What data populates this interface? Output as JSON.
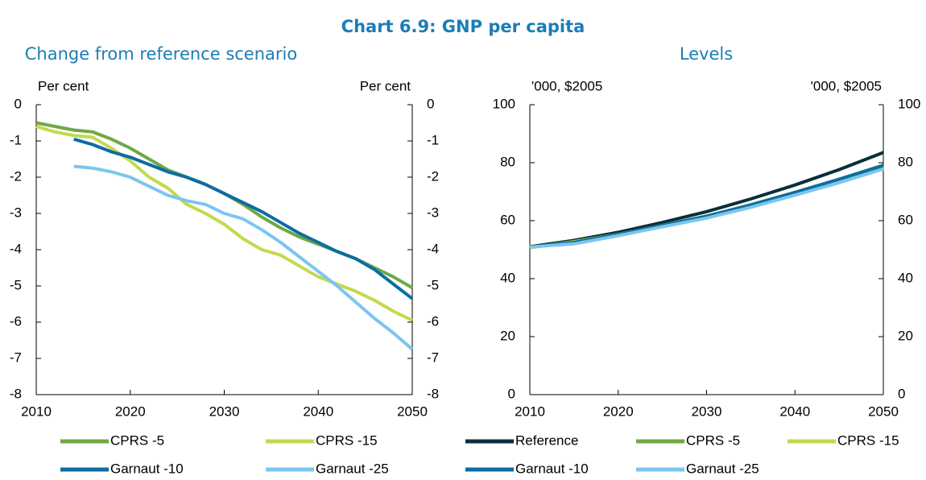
{
  "title": "Chart 6.9: GNP per capita",
  "chart_data": [
    {
      "type": "line",
      "title": "Change from reference scenario",
      "ylabel": "Per cent",
      "y2label": "Per cent",
      "x": [
        2010,
        2012,
        2014,
        2016,
        2018,
        2020,
        2022,
        2024,
        2026,
        2028,
        2030,
        2032,
        2034,
        2036,
        2038,
        2040,
        2042,
        2044,
        2046,
        2048,
        2050
      ],
      "xlim": [
        2010,
        2050
      ],
      "xticks": [
        2010,
        2020,
        2030,
        2040,
        2050
      ],
      "ylim": [
        -8,
        0
      ],
      "yticks": [
        -8,
        -7,
        -6,
        -5,
        -4,
        -3,
        -2,
        -1,
        0
      ],
      "y2lim": [
        -8,
        0
      ],
      "y2ticks": [
        -8,
        -7,
        -6,
        -5,
        -4,
        -3,
        -2,
        -1,
        0
      ],
      "series": [
        {
          "name": "CPRS -5",
          "color": "#6fa843",
          "values": [
            -0.5,
            -0.6,
            -0.7,
            -0.75,
            -0.95,
            -1.2,
            -1.5,
            -1.8,
            -2.0,
            -2.2,
            -2.45,
            -2.75,
            -3.1,
            -3.4,
            -3.65,
            -3.85,
            -4.05,
            -4.25,
            -4.5,
            -4.75,
            -5.05
          ]
        },
        {
          "name": "CPRS -15",
          "color": "#c3d94e",
          "values": [
            -0.6,
            -0.75,
            -0.85,
            -0.9,
            -1.2,
            -1.55,
            -2.0,
            -2.3,
            -2.75,
            -3.0,
            -3.3,
            -3.7,
            -4.0,
            -4.15,
            -4.45,
            -4.75,
            -4.95,
            -5.15,
            -5.4,
            -5.7,
            -5.95
          ]
        },
        {
          "name": "Garnaut -10",
          "color": "#0c6ca3",
          "values": [
            null,
            null,
            -0.95,
            -1.1,
            -1.3,
            -1.45,
            -1.65,
            -1.85,
            -2.0,
            -2.2,
            -2.45,
            -2.7,
            -2.95,
            -3.25,
            -3.55,
            -3.8,
            -4.05,
            -4.25,
            -4.55,
            -4.95,
            -5.35
          ]
        },
        {
          "name": "Garnaut -25",
          "color": "#7cc6ee",
          "values": [
            null,
            null,
            -1.7,
            -1.75,
            -1.85,
            -2.0,
            -2.25,
            -2.5,
            -2.65,
            -2.75,
            -3.0,
            -3.15,
            -3.45,
            -3.8,
            -4.2,
            -4.6,
            -5.0,
            -5.45,
            -5.9,
            -6.3,
            -6.75
          ]
        }
      ]
    },
    {
      "type": "line",
      "title": "Levels",
      "ylabel": "'000, $2005",
      "y2label": "'000, $2005",
      "x": [
        2010,
        2015,
        2020,
        2025,
        2030,
        2035,
        2040,
        2045,
        2050
      ],
      "xlim": [
        2010,
        2050
      ],
      "xticks": [
        2010,
        2020,
        2030,
        2040,
        2050
      ],
      "ylim": [
        0,
        100
      ],
      "yticks": [
        0,
        20,
        40,
        60,
        80,
        100
      ],
      "y2lim": [
        0,
        100
      ],
      "y2ticks": [
        0,
        20,
        40,
        60,
        80,
        100
      ],
      "series": [
        {
          "name": "Reference",
          "color": "#0a2f3c",
          "values": [
            51,
            53.2,
            56,
            59.4,
            63.1,
            67.5,
            72.3,
            77.6,
            83.5
          ]
        },
        {
          "name": "CPRS -5",
          "color": "#6fa843",
          "values": [
            50.7,
            52.8,
            55.3,
            58.4,
            61.6,
            65.5,
            69.8,
            74.3,
            79.2
          ]
        },
        {
          "name": "CPRS -15",
          "color": "#c3d94e",
          "values": [
            50.7,
            52.7,
            55.0,
            58.0,
            61.1,
            65.0,
            69.2,
            73.6,
            78.5
          ]
        },
        {
          "name": "Garnaut -10",
          "color": "#0c6ca3",
          "values": [
            50.9,
            52.5,
            55.2,
            58.3,
            61.5,
            65.4,
            69.7,
            74.3,
            79.0
          ]
        },
        {
          "name": "Garnaut -25",
          "color": "#7cc6ee",
          "values": [
            50.9,
            52.0,
            54.8,
            57.9,
            60.9,
            64.6,
            68.8,
            73.1,
            77.8
          ]
        }
      ]
    }
  ]
}
